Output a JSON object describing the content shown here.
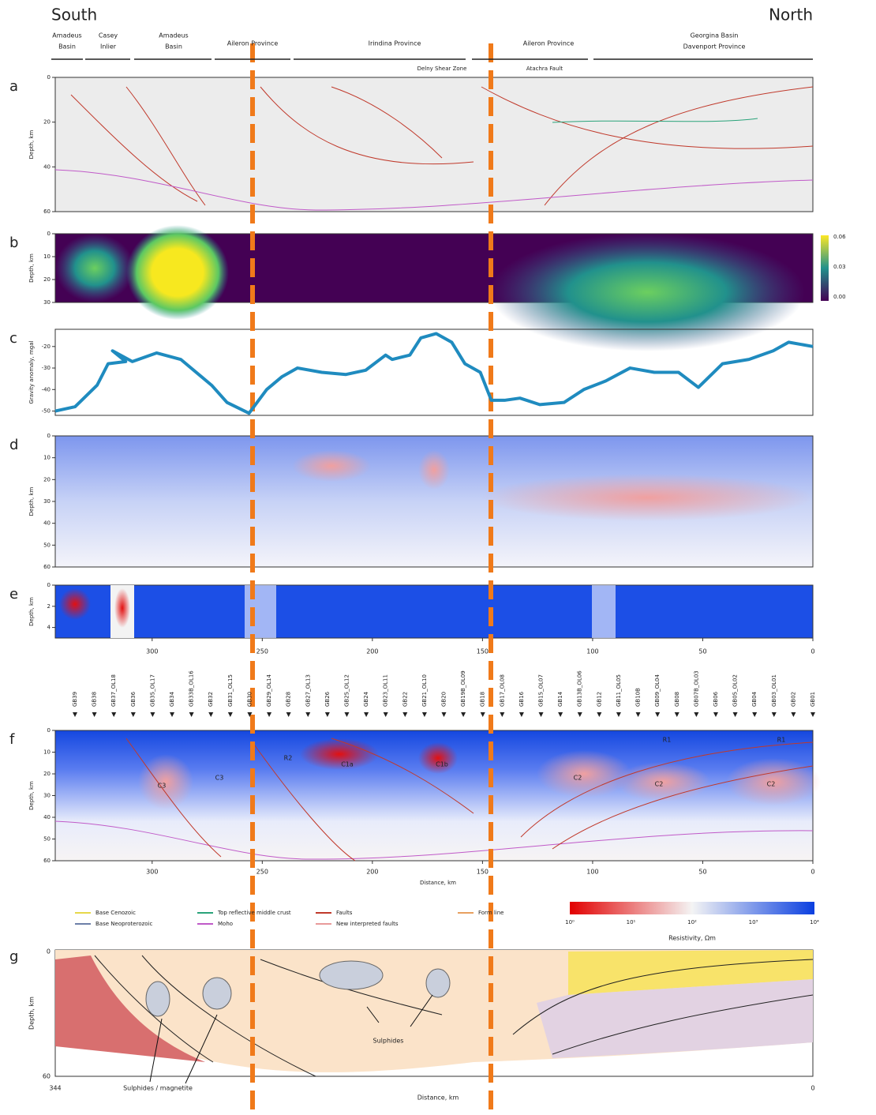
{
  "header": {
    "south": "South",
    "north": "North"
  },
  "provinces": [
    [
      "Amadeus",
      "Basin"
    ],
    [
      "Casey",
      "Inlier"
    ],
    [
      "Amadeus",
      "Basin"
    ],
    [
      "Aileron Province"
    ],
    [
      "Irindina Province"
    ],
    [
      "Aileron Province"
    ],
    [
      "Georgina Basin",
      "Davenport Province"
    ]
  ],
  "annotations": {
    "delny": "Delny Shear Zone",
    "fault": "Atachra Fault"
  },
  "panels": {
    "a": {
      "letter": "a",
      "ylabel": "Depth, km",
      "ylim": [
        0,
        60
      ],
      "yticks": [
        0,
        20,
        40,
        60
      ]
    },
    "b": {
      "letter": "b",
      "ylabel": "Depth, km",
      "ylim": [
        0,
        30
      ],
      "yticks": [
        0,
        10,
        20,
        30
      ],
      "colorbar": [
        "0.06",
        "0.03",
        "0.00"
      ]
    },
    "c": {
      "letter": "c",
      "ylabel": "Gravity anomaly, mgal",
      "ylim": [
        -52,
        -12
      ],
      "yticks": [
        -20,
        -30,
        -40,
        -50
      ],
      "color": "#1f8bbf",
      "x": [
        344,
        335,
        325,
        320,
        312,
        318,
        309,
        298,
        287,
        273,
        266,
        256,
        248,
        241,
        234,
        223,
        212,
        203,
        194,
        191,
        183,
        178,
        171,
        164,
        158,
        151,
        146,
        140,
        133,
        124,
        113,
        104,
        94,
        83,
        72,
        61,
        52,
        41,
        29,
        18,
        11,
        0
      ],
      "values": [
        -50,
        -48,
        -38,
        -28,
        -27,
        -22,
        -27,
        -23,
        -26,
        -38,
        -46,
        -51,
        -40,
        -34,
        -30,
        -32,
        -33,
        -31,
        -24,
        -26,
        -24,
        -16,
        -14,
        -18,
        -28,
        -32,
        -45,
        -45,
        -44,
        -47,
        -46,
        -40,
        -36,
        -30,
        -32,
        -32,
        -39,
        -28,
        -26,
        -22,
        -18,
        -20
      ]
    },
    "d": {
      "letter": "d",
      "ylabel": "Depth, km",
      "ylim": [
        0,
        60
      ],
      "yticks": [
        0,
        10,
        20,
        30,
        40,
        50,
        60
      ]
    },
    "e": {
      "letter": "e",
      "ylabel": "Depth, km",
      "ylim": [
        0,
        5
      ],
      "yticks": [
        0,
        2,
        4
      ]
    },
    "f": {
      "letter": "f",
      "ylabel": "Depth, km",
      "ylim": [
        0,
        60
      ],
      "yticks": [
        0,
        10,
        20,
        30,
        40,
        50,
        60
      ],
      "labels": [
        "C3",
        "C3",
        "R2",
        "C1a",
        "C1b",
        "C2",
        "C2",
        "C2",
        "R1",
        "R1"
      ]
    }
  },
  "distance": {
    "xlim": [
      344,
      0
    ],
    "ticks": [
      300,
      250,
      200,
      150,
      100,
      50,
      0
    ],
    "label": "Distance, km"
  },
  "stations": [
    "GB39",
    "GB38",
    "GB37_OL18",
    "GB36",
    "GB35_OL17",
    "GB34",
    "GB33B_OL16",
    "GB32",
    "GB31_OL15",
    "GB30",
    "GB29_OL14",
    "GB28",
    "GB27_OL13",
    "GB26",
    "GB25_OL12",
    "GB24",
    "GB23_OL11",
    "GB22",
    "GB21_OL10",
    "GB20",
    "GB19B_OL09",
    "GB18",
    "GB17_OL08",
    "GB16",
    "GB15_OL07",
    "GB14",
    "GB13B_OL06",
    "GB12",
    "GB11_OL05",
    "GB10B",
    "GB09_OL04",
    "GB08",
    "GB07B_OL03",
    "GB06",
    "GB05_OL02",
    "GB04",
    "GB03_OL01",
    "GB02",
    "GB01"
  ],
  "legend": [
    {
      "name": "Base Cenozoic",
      "color": "#e6d84a"
    },
    {
      "name": "Base Neoproterozoic",
      "color": "#6d7fa8"
    },
    {
      "name": "Top reflective middle crust",
      "color": "#2aa37a"
    },
    {
      "name": "Moho",
      "color": "#c05ac8"
    },
    {
      "name": "Faults",
      "color": "#c0392b"
    },
    {
      "name": "New interpreted faults",
      "color": "#e89a9a"
    },
    {
      "name": "Form line",
      "color": "#e8a060"
    }
  ],
  "resistivity": {
    "label": "Resistivity, Ωm",
    "ticks": [
      "10⁰",
      "10¹",
      "10²",
      "10³",
      "10⁴"
    ]
  },
  "g": {
    "letter": "g",
    "ylabel": "Depth, km",
    "top": "0",
    "bottom": "60",
    "left": "344",
    "right": "0",
    "xlabel": "Distance, km",
    "sulphides": "Sulphides",
    "sulphides_magnetite": "Sulphides / magnetite"
  }
}
